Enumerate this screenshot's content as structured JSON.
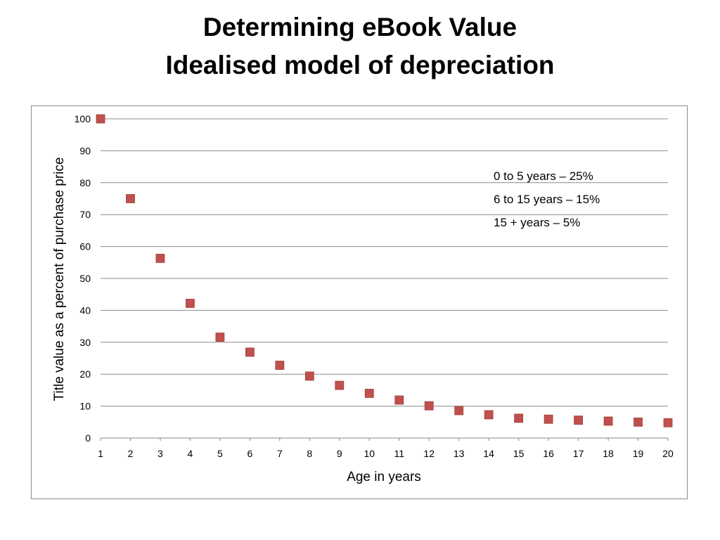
{
  "slide": {
    "title_line1": "Determining eBook Value",
    "title_line2": "Idealised model of depreciation"
  },
  "chart_data": {
    "type": "scatter",
    "xlabel": "Age in years",
    "ylabel": "Title value as a percent of purchase price",
    "x": [
      1,
      2,
      3,
      4,
      5,
      6,
      7,
      8,
      9,
      10,
      11,
      12,
      13,
      14,
      15,
      16,
      17,
      18,
      19,
      20
    ],
    "y": [
      100,
      75,
      56.3,
      42.2,
      31.6,
      26.9,
      22.8,
      19.4,
      16.5,
      14.0,
      11.9,
      10.1,
      8.6,
      7.3,
      6.2,
      5.9,
      5.6,
      5.3,
      5.0,
      4.8
    ],
    "xticks": [
      "1",
      "2",
      "3",
      "4",
      "5",
      "6",
      "7",
      "8",
      "9",
      "10",
      "11",
      "12",
      "13",
      "14",
      "15",
      "16",
      "17",
      "18",
      "19",
      "20"
    ],
    "yticks": [
      0,
      10,
      20,
      30,
      40,
      50,
      60,
      70,
      80,
      90,
      100
    ],
    "ylim": [
      0,
      100
    ],
    "grid": true,
    "marker_color": "#c0504d",
    "annotations": [
      "0 to 5 years – 25%",
      "6 to 15 years – 15%",
      "15 + years – 5%"
    ]
  }
}
